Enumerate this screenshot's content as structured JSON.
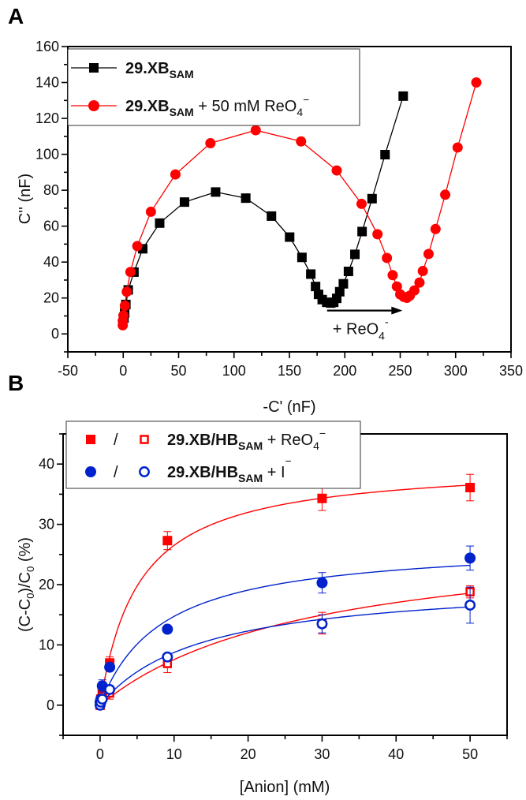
{
  "chart_data": [
    {
      "panel": "A",
      "type": "scatter",
      "xlabel": "-C' (nF)",
      "ylabel": "C'' (nF)",
      "xlim": [
        -50,
        350
      ],
      "ylim": [
        -10,
        160
      ],
      "xticks": [
        "-50",
        "0",
        "50",
        "100",
        "150",
        "200",
        "250",
        "300",
        "350"
      ],
      "yticks": [
        "0",
        "20",
        "40",
        "60",
        "80",
        "100",
        "120",
        "140",
        "160"
      ],
      "legend_position": "top-left",
      "annotation": {
        "text": "+ ReO",
        "sub": "4",
        "sup": "-",
        "arrow_from": [
          184,
          13
        ],
        "arrow_to": [
          252,
          13
        ]
      },
      "series": [
        {
          "name": "29.XB_SAM",
          "legend": {
            "main": "29.XB",
            "sub": "SAM",
            "suffix": "",
            "sub2": "",
            "sup": ""
          },
          "color": "#000000",
          "marker": "square",
          "points": [
            [
              0.7,
              8.8
            ],
            [
              1.3,
              11.7
            ],
            [
              2.4,
              16.4
            ],
            [
              4.5,
              24.5
            ],
            [
              9.7,
              34.4
            ],
            [
              17.6,
              47.4
            ],
            [
              32.9,
              61.7
            ],
            [
              55.3,
              73.4
            ],
            [
              83.4,
              79.0
            ],
            [
              110.6,
              75.6
            ],
            [
              133.8,
              65.6
            ],
            [
              150.2,
              53.9
            ],
            [
              161.3,
              42.6
            ],
            [
              169.3,
              33.3
            ],
            [
              173.6,
              26.4
            ],
            [
              176.3,
              22.0
            ],
            [
              179.6,
              19.1
            ],
            [
              183.7,
              17.6
            ],
            [
              187.3,
              17.2
            ],
            [
              190.0,
              17.6
            ],
            [
              192.7,
              19.8
            ],
            [
              195.4,
              23.5
            ],
            [
              198.7,
              27.9
            ],
            [
              203.3,
              34.8
            ],
            [
              209.1,
              44.3
            ],
            [
              215.6,
              57.0
            ],
            [
              224.6,
              75.3
            ],
            [
              236.3,
              99.8
            ],
            [
              252.7,
              132.4
            ]
          ]
        },
        {
          "name": "29.XB_SAM + 50 mM ReO4-",
          "legend": {
            "main": "29.XB",
            "sub": "SAM",
            "suffix": " + 50 mM ReO",
            "sub2": "4",
            "sup": "−"
          },
          "color": "#ff0000",
          "marker": "circle",
          "points": [
            [
              -0.4,
              4.8
            ],
            [
              -0.4,
              7.3
            ],
            [
              0.2,
              10.3
            ],
            [
              1.5,
              15.7
            ],
            [
              3.2,
              23.5
            ],
            [
              6.5,
              34.5
            ],
            [
              12.7,
              48.9
            ],
            [
              25.0,
              68.0
            ],
            [
              47.1,
              88.8
            ],
            [
              78.7,
              106.2
            ],
            [
              119.6,
              113.4
            ],
            [
              160.5,
              107.2
            ],
            [
              192.7,
              91.0
            ],
            [
              215.1,
              72.4
            ],
            [
              229.5,
              55.5
            ],
            [
              238.0,
              42.3
            ],
            [
              243.2,
              32.7
            ],
            [
              247.0,
              26.4
            ],
            [
              250.0,
              22.0
            ],
            [
              253.2,
              20.6
            ],
            [
              256.0,
              20.1
            ],
            [
              258.7,
              21.3
            ],
            [
              262.8,
              24.2
            ],
            [
              267.4,
              28.6
            ],
            [
              270.4,
              35.0
            ],
            [
              275.6,
              44.5
            ],
            [
              281.9,
              58.4
            ],
            [
              290.6,
              77.5
            ],
            [
              301.8,
              103.8
            ],
            [
              318.7,
              140.0
            ]
          ]
        }
      ]
    },
    {
      "panel": "B",
      "type": "scatter",
      "xlabel": "[Anion] (mM)",
      "ylabel": "(C-C0)/C0 (%)",
      "ylabel_parts": {
        "a": "(C-C",
        "s1": "0",
        "b": ")/C",
        "s2": "0",
        "c": " (%)"
      },
      "xlim": [
        -5,
        55
      ],
      "ylim": [
        -5,
        45
      ],
      "xticks": [
        "0",
        "10",
        "20",
        "30",
        "40",
        "50"
      ],
      "yticks": [
        "0",
        "10",
        "20",
        "30",
        "40"
      ],
      "legend_position": "top-left",
      "legend": [
        {
          "sep": "/",
          "main": "29.XB/HB",
          "sub": "SAM",
          "suffix": " + ReO",
          "sub2": "4",
          "sup": "−",
          "color": "#ff0000",
          "marker": "square"
        },
        {
          "sep": "/",
          "main": "29.XB/HB",
          "sub": "SAM",
          "suffix": " + I",
          "sub2": "",
          "sup": "−",
          "color": "#0022cc",
          "marker": "circle"
        }
      ],
      "x": [
        0,
        0.1,
        0.3,
        1.3,
        9.1,
        30,
        50
      ],
      "series": [
        {
          "name": "29.XB_SAM + ReO4-",
          "color": "#ff0000",
          "marker": "square",
          "filled": true,
          "y": [
            0,
            1,
            2.5,
            7.0,
            27.3,
            34.3,
            36.1
          ],
          "err": [
            0.5,
            0.7,
            1,
            1,
            1.5,
            2,
            2.2
          ],
          "fit": {
            "type": "langmuir",
            "Bmax": 40.3,
            "K": 5.2
          }
        },
        {
          "name": "29.HB_SAM + ReO4-",
          "color": "#ff0000",
          "marker": "square",
          "filled": false,
          "y": [
            0,
            0.5,
            1.5,
            2.0,
            6.9,
            13.6,
            18.8
          ],
          "err": [
            0.5,
            0.5,
            1,
            1,
            1.5,
            1.8,
            1
          ],
          "fit": {
            "type": "langmuir",
            "Bmax": 29.2,
            "K": 28.6
          }
        },
        {
          "name": "29.XB_SAM + I-",
          "color": "#0022cc",
          "marker": "circle",
          "filled": true,
          "y": [
            0.5,
            1,
            3.2,
            6.3,
            12.6,
            20.3,
            24.4
          ],
          "err": [
            0.5,
            0.7,
            1,
            0.6,
            0.5,
            1.7,
            2
          ],
          "fit": {
            "type": "langmuir",
            "Bmax": 27.1,
            "K": 8.4
          }
        },
        {
          "name": "29.HB_SAM + I-",
          "color": "#0022cc",
          "marker": "circle",
          "filled": false,
          "y": [
            0,
            0.5,
            1,
            2.6,
            8.0,
            13.5,
            16.6
          ],
          "err": [
            0.3,
            0.4,
            0.5,
            0.5,
            0.5,
            1.5,
            3
          ],
          "fit": {
            "type": "langmuir",
            "Bmax": 20.8,
            "K": 13.8
          }
        }
      ]
    }
  ],
  "panels": {
    "a": "A",
    "b": "B"
  }
}
